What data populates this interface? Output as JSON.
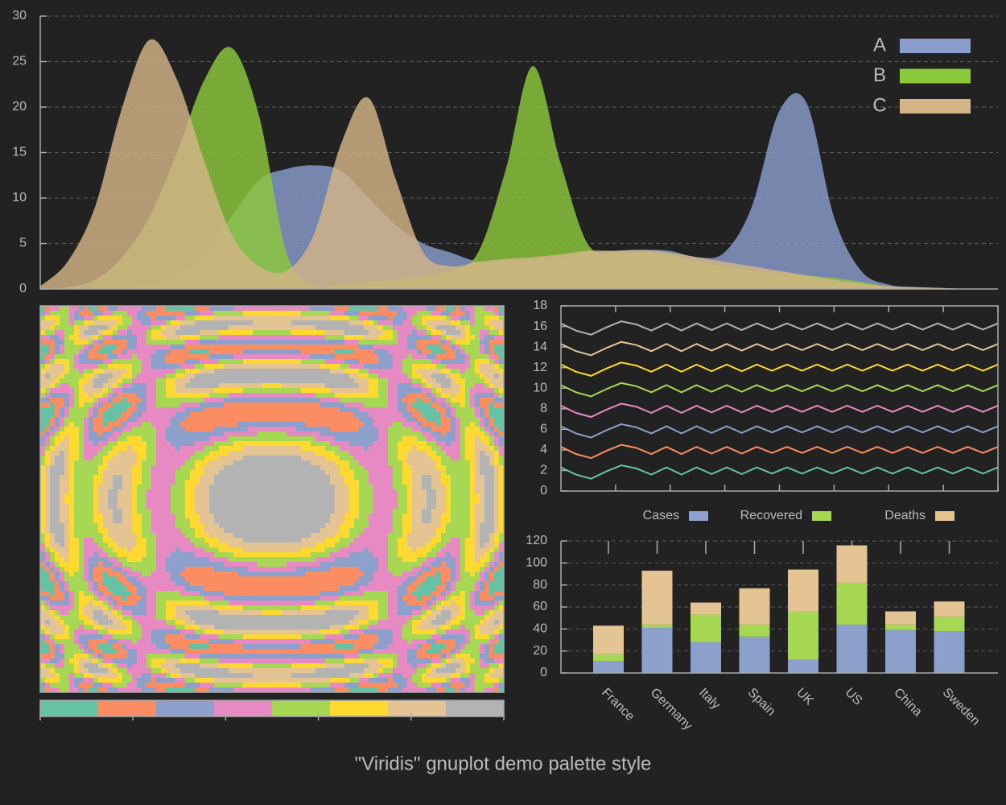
{
  "title": "\"Viridis\" gnuplot demo palette style",
  "chart_data": [
    {
      "type": "area",
      "ylim": [
        0,
        30
      ],
      "yticks": [
        0,
        5,
        10,
        15,
        20,
        25,
        30
      ],
      "grid": true,
      "legend": "top-right",
      "series": [
        {
          "name": "A",
          "color": "#8a9ccc",
          "values": [
            0,
            0,
            0,
            0.2,
            0.5,
            1.5,
            4,
            8,
            12,
            13.2,
            13.6,
            13,
            10,
            7,
            5,
            4,
            3,
            3,
            3.2,
            3.5,
            4,
            4.2,
            4.3,
            4.2,
            3.5,
            4,
            9,
            19.5,
            20.5,
            8,
            2,
            0.5,
            0.2,
            0.1,
            0,
            0
          ]
        },
        {
          "name": "B",
          "color": "#8cc83c",
          "values": [
            0,
            0.2,
            1,
            3.5,
            8,
            15,
            23,
            26.5,
            19,
            4,
            0.3,
            0.5,
            0.8,
            1,
            1.5,
            2,
            4,
            13,
            24.5,
            14,
            5,
            4,
            4,
            3.8,
            3,
            2.5,
            2,
            1.8,
            1.5,
            1.2,
            0.8,
            0.3,
            0.2,
            0.1,
            0,
            0
          ]
        },
        {
          "name": "C",
          "color": "#d4b486",
          "values": [
            0.3,
            3,
            9,
            20,
            27.4,
            23,
            14,
            6,
            2.5,
            2,
            6,
            16,
            21,
            12,
            4,
            2.5,
            3,
            3.3,
            3.5,
            3.8,
            4.2,
            4.2,
            4.3,
            4,
            3.5,
            3,
            2.5,
            2,
            1.5,
            1,
            0.6,
            0.3,
            0.2,
            0.1,
            0,
            0
          ]
        }
      ]
    },
    {
      "type": "heatmap",
      "palette": [
        "#66c2a5",
        "#fc8d62",
        "#8da0cb",
        "#e78ac3",
        "#a6d854",
        "#ffd92f",
        "#e5c494",
        "#b3b3b3"
      ]
    },
    {
      "type": "line",
      "ylim": [
        0,
        18
      ],
      "yticks": [
        0,
        2,
        4,
        6,
        8,
        10,
        12,
        14,
        16,
        18
      ],
      "series": [
        {
          "color": "#66c2a5",
          "values": [
            2.3,
            1.6,
            1.2,
            1.9,
            2.5,
            2.2,
            1.6,
            2.3,
            1.6,
            2.3,
            1.65,
            2.3,
            1.65,
            2.3,
            1.7,
            2.3,
            1.7,
            2.3,
            1.7,
            2.3,
            1.7,
            2.3,
            1.7,
            2.3,
            1.7,
            2.3,
            1.7,
            2.3,
            1.7,
            2.3
          ]
        },
        {
          "color": "#fc8d62",
          "values": [
            4.3,
            3.6,
            3.2,
            3.9,
            4.5,
            4.2,
            3.6,
            4.3,
            3.6,
            4.3,
            3.65,
            4.3,
            3.65,
            4.3,
            3.7,
            4.3,
            3.7,
            4.3,
            3.7,
            4.3,
            3.7,
            4.3,
            3.7,
            4.3,
            3.7,
            4.3,
            3.7,
            4.3,
            3.7,
            4.3
          ]
        },
        {
          "color": "#8da0cb",
          "values": [
            6.3,
            5.6,
            5.2,
            5.9,
            6.5,
            6.2,
            5.6,
            6.3,
            5.6,
            6.3,
            5.65,
            6.3,
            5.65,
            6.3,
            5.7,
            6.3,
            5.7,
            6.3,
            5.7,
            6.3,
            5.7,
            6.3,
            5.7,
            6.3,
            5.7,
            6.3,
            5.7,
            6.3,
            5.7,
            6.3
          ]
        },
        {
          "color": "#e78ac3",
          "values": [
            8.3,
            7.6,
            7.2,
            7.9,
            8.5,
            8.2,
            7.6,
            8.3,
            7.6,
            8.3,
            7.65,
            8.3,
            7.65,
            8.3,
            7.7,
            8.3,
            7.7,
            8.3,
            7.7,
            8.3,
            7.7,
            8.3,
            7.7,
            8.3,
            7.7,
            8.3,
            7.7,
            8.3,
            7.7,
            8.3
          ]
        },
        {
          "color": "#a6d854",
          "values": [
            10.3,
            9.6,
            9.2,
            9.9,
            10.5,
            10.2,
            9.6,
            10.3,
            9.6,
            10.3,
            9.65,
            10.3,
            9.65,
            10.3,
            9.7,
            10.3,
            9.7,
            10.3,
            9.7,
            10.3,
            9.7,
            10.3,
            9.7,
            10.3,
            9.7,
            10.3,
            9.7,
            10.3,
            9.7,
            10.3
          ]
        },
        {
          "color": "#ffd92f",
          "values": [
            12.3,
            11.6,
            11.2,
            11.9,
            12.5,
            12.2,
            11.6,
            12.3,
            11.6,
            12.3,
            11.65,
            12.3,
            11.65,
            12.3,
            11.7,
            12.3,
            11.7,
            12.3,
            11.7,
            12.3,
            11.7,
            12.3,
            11.7,
            12.3,
            11.7,
            12.3,
            11.7,
            12.3,
            11.7,
            12.3
          ]
        },
        {
          "color": "#e5c494",
          "values": [
            14.3,
            13.6,
            13.2,
            13.9,
            14.5,
            14.2,
            13.6,
            14.3,
            13.6,
            14.3,
            13.65,
            14.3,
            13.65,
            14.3,
            13.7,
            14.3,
            13.7,
            14.3,
            13.7,
            14.3,
            13.7,
            14.3,
            13.7,
            14.3,
            13.7,
            14.3,
            13.7,
            14.3,
            13.7,
            14.3
          ]
        },
        {
          "color": "#b3b3b3",
          "values": [
            16.3,
            15.6,
            15.2,
            15.9,
            16.5,
            16.2,
            15.6,
            16.3,
            15.6,
            16.3,
            15.65,
            16.3,
            15.65,
            16.3,
            15.7,
            16.3,
            15.7,
            16.3,
            15.7,
            16.3,
            15.7,
            16.3,
            15.7,
            16.3,
            15.7,
            16.3,
            15.7,
            16.3,
            15.7,
            16.3
          ]
        }
      ]
    },
    {
      "type": "bar",
      "stacked": true,
      "grid": true,
      "legend": "top",
      "ylim": [
        0,
        120
      ],
      "yticks": [
        0,
        20,
        40,
        60,
        80,
        100,
        120
      ],
      "categories": [
        "France",
        "Germany",
        "Italy",
        "Spain",
        "UK",
        "US",
        "China",
        "Sweden"
      ],
      "series": [
        {
          "name": "Cases",
          "color": "#8da0cb",
          "values": [
            11,
            41,
            28,
            33,
            12,
            44,
            39,
            38
          ]
        },
        {
          "name": "Recovered",
          "color": "#a6d854",
          "values": [
            6,
            3,
            25,
            11,
            44,
            38,
            5,
            13
          ]
        },
        {
          "name": "Deaths",
          "color": "#e5c494",
          "values": [
            26,
            49,
            11,
            33,
            38,
            34,
            12,
            14
          ]
        }
      ]
    }
  ]
}
